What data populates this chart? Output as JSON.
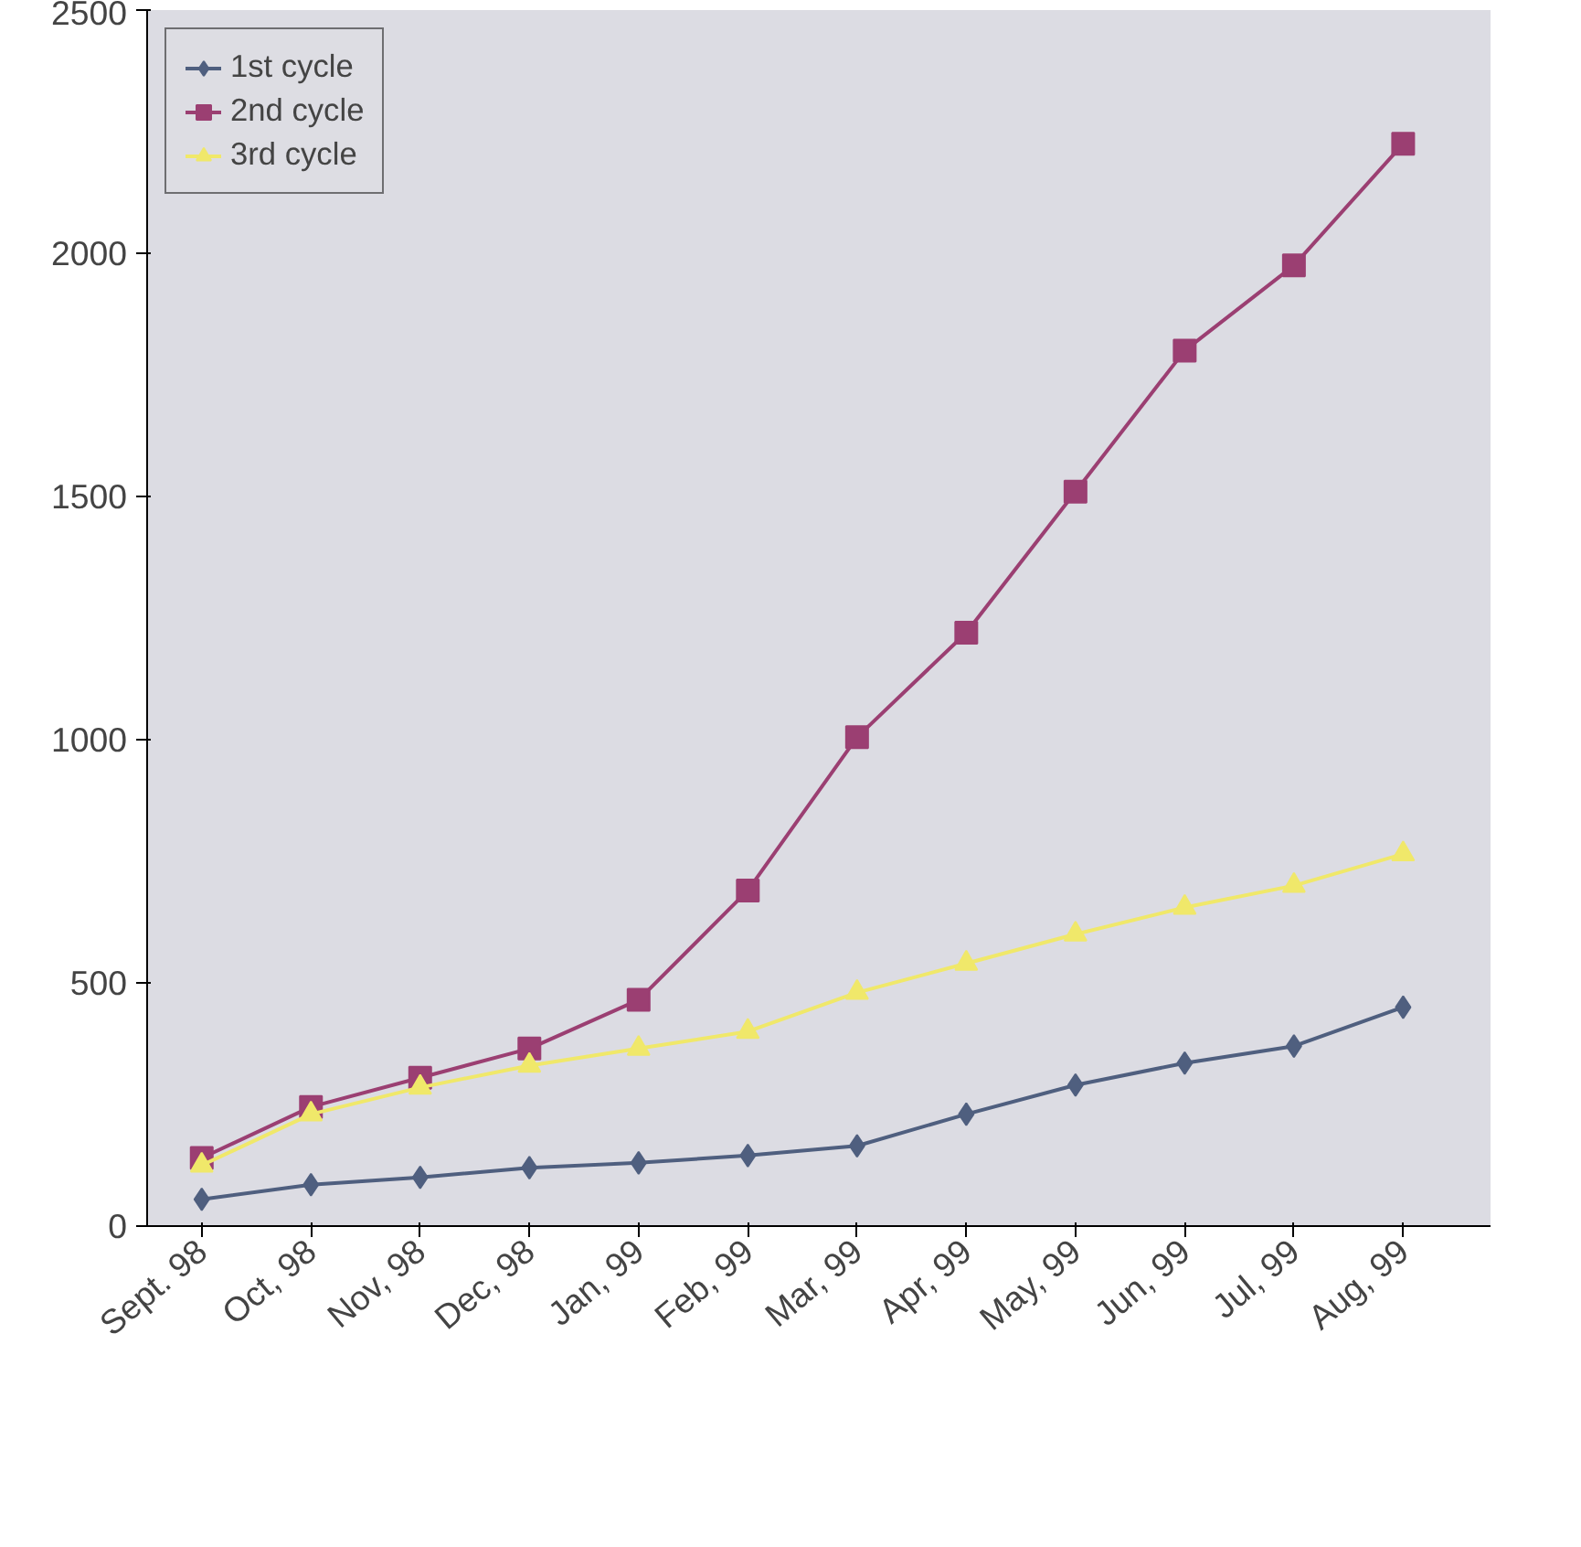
{
  "chart_data": {
    "type": "line",
    "categories": [
      "Sept. 98",
      "Oct, 98",
      "Nov, 98",
      "Dec, 98",
      "Jan, 99",
      "Feb, 99",
      "Mar, 99",
      "Apr, 99",
      "May, 99",
      "Jun, 99",
      "Jul, 99",
      "Aug, 99"
    ],
    "series": [
      {
        "name": "1st cycle",
        "color": "#4f5f7f",
        "marker": "diamond",
        "values": [
          55,
          85,
          100,
          120,
          130,
          145,
          165,
          230,
          290,
          335,
          370,
          450
        ]
      },
      {
        "name": "2nd cycle",
        "color": "#9b3f72",
        "marker": "square",
        "values": [
          140,
          245,
          305,
          365,
          465,
          690,
          1005,
          1220,
          1510,
          1800,
          1975,
          2225
        ]
      },
      {
        "name": "3rd cycle",
        "color": "#f0e86a",
        "marker": "triangle",
        "values": [
          125,
          230,
          285,
          330,
          365,
          400,
          480,
          540,
          600,
          655,
          700,
          765
        ]
      }
    ],
    "ylim": [
      0,
      2500
    ],
    "yticks": [
      0,
      500,
      1000,
      1500,
      2000,
      2500
    ],
    "grid": false,
    "legend": "top left"
  }
}
